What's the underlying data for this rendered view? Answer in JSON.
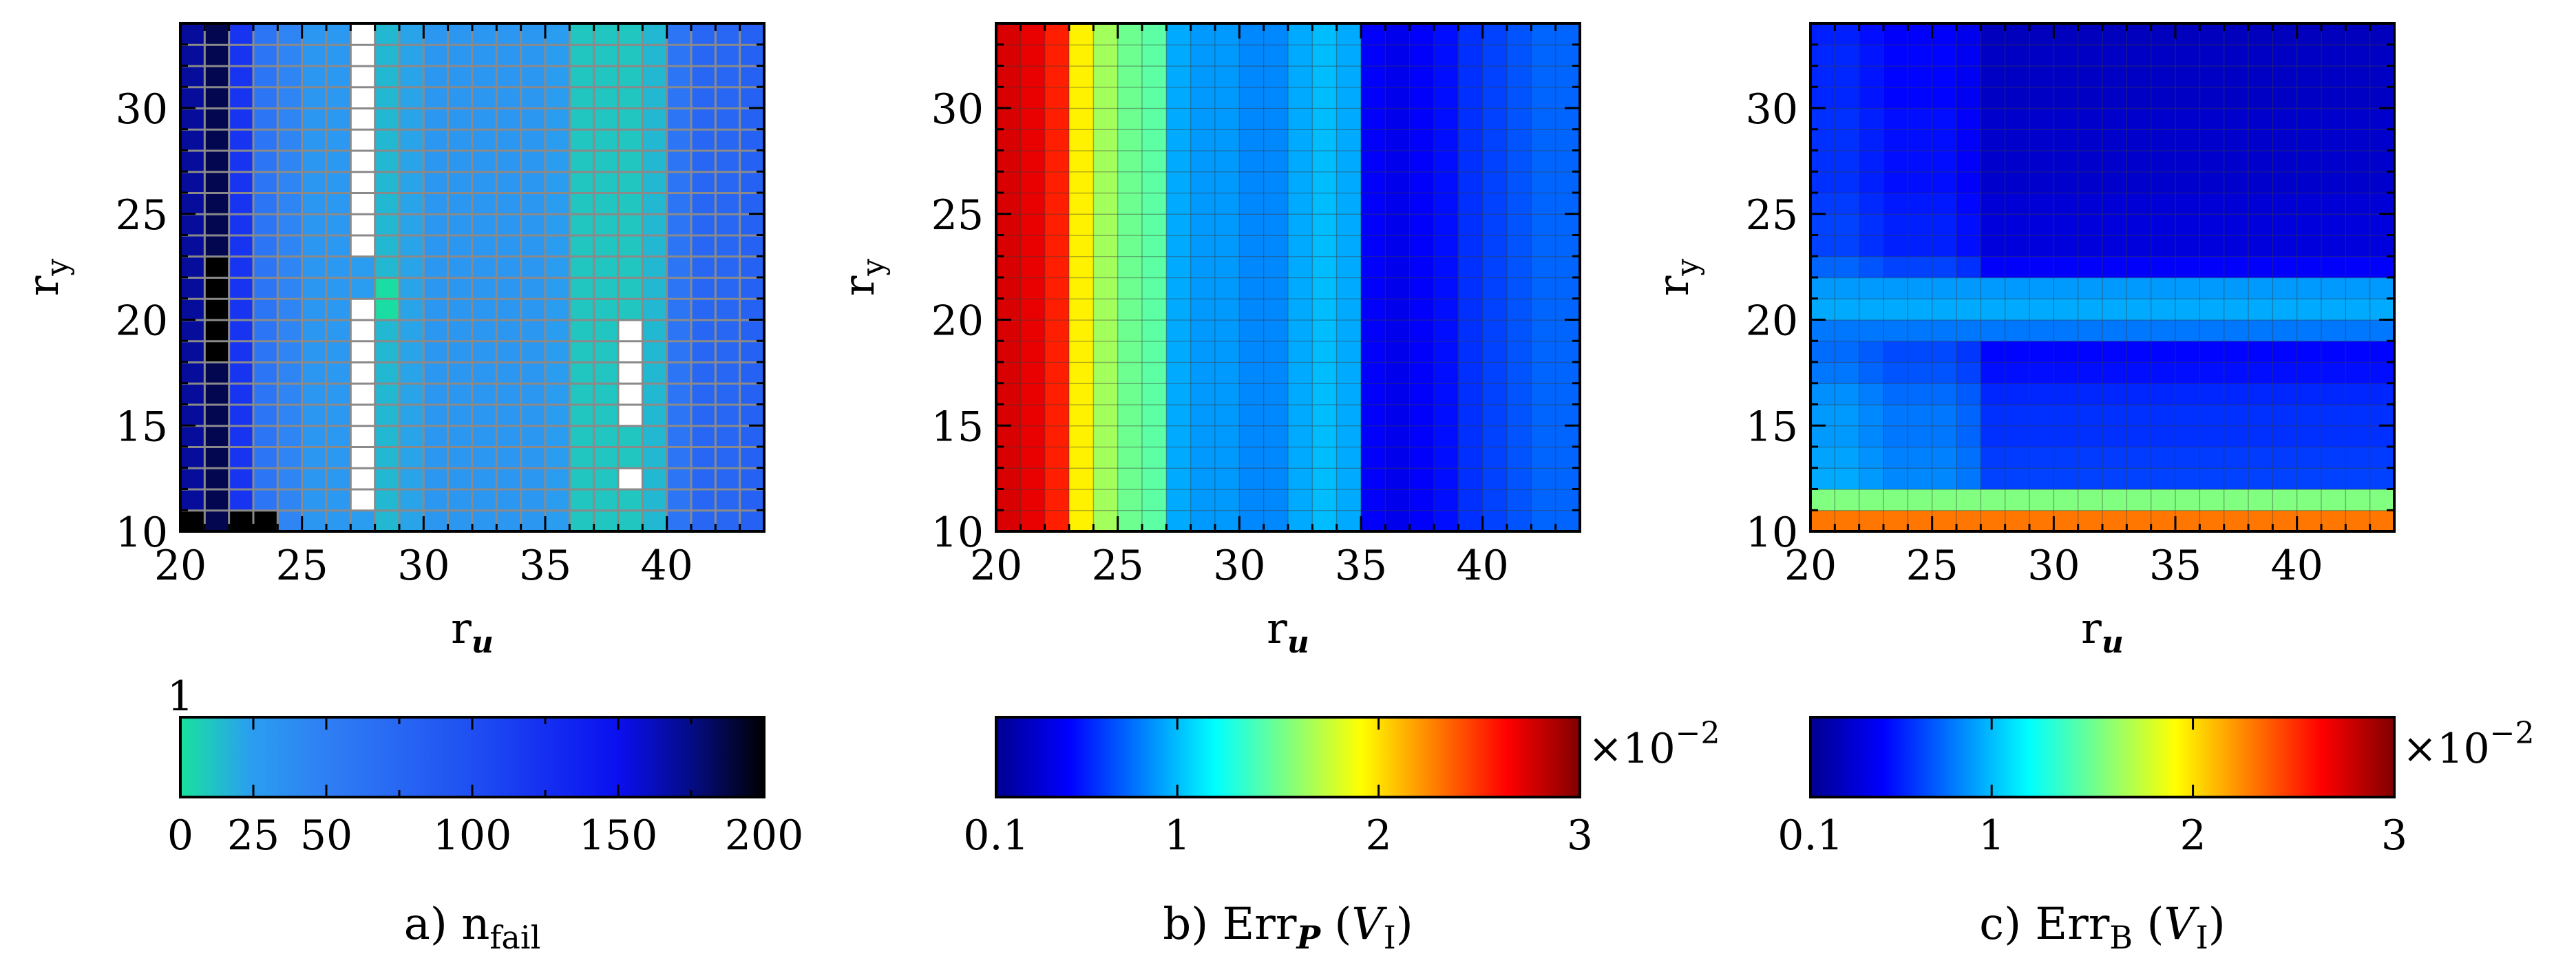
{
  "chart_data": [
    {
      "type": "heatmap",
      "panel": "a",
      "xlabel": "r",
      "xlabel_sub": "u",
      "ylabel": "r",
      "ylabel_sub": "y",
      "x_range": [
        20,
        44
      ],
      "y_range": [
        10,
        34
      ],
      "x_ticks": [
        "20",
        "25",
        "30",
        "35",
        "40"
      ],
      "y_ticks": [
        "10",
        "15",
        "20",
        "25",
        "30"
      ],
      "grid": true,
      "colormap": "nfail",
      "colorbar": {
        "min": 0,
        "max": 200,
        "ticks": [
          "0",
          "25",
          "50",
          "100",
          "150",
          "200"
        ],
        "tick_values": [
          0,
          25,
          50,
          100,
          150,
          200
        ],
        "top_label": "1",
        "multiplier": "",
        "caption_prefix": "a) n",
        "caption_sub": "fail"
      },
      "column_values": [
        [
          20,
          170
        ],
        [
          21,
          185
        ],
        [
          22,
          120
        ],
        [
          23,
          60
        ],
        [
          24,
          45
        ],
        [
          25,
          30
        ],
        [
          26,
          28
        ],
        [
          27,
          25
        ],
        [
          28,
          15
        ],
        [
          29,
          22
        ],
        [
          30,
          30
        ],
        [
          31,
          30
        ],
        [
          32,
          30
        ],
        [
          33,
          30
        ],
        [
          34,
          30
        ],
        [
          35,
          25
        ],
        [
          36,
          10
        ],
        [
          37,
          10
        ],
        [
          38,
          10
        ],
        [
          39,
          15
        ],
        [
          40,
          60
        ],
        [
          41,
          75
        ],
        [
          42,
          75
        ],
        [
          43,
          80
        ]
      ],
      "cell_overrides": [
        [
          21,
          18,
          200
        ],
        [
          21,
          19,
          200
        ],
        [
          21,
          20,
          200
        ],
        [
          21,
          21,
          200
        ],
        [
          21,
          22,
          200
        ],
        [
          22,
          10,
          200
        ],
        [
          23,
          10,
          200
        ],
        [
          20,
          10,
          200
        ],
        [
          27,
          11,
          null
        ],
        [
          27,
          12,
          null
        ],
        [
          27,
          13,
          null
        ],
        [
          27,
          14,
          null
        ],
        [
          27,
          15,
          null
        ],
        [
          27,
          16,
          null
        ],
        [
          27,
          17,
          null
        ],
        [
          27,
          18,
          null
        ],
        [
          27,
          19,
          null
        ],
        [
          27,
          20,
          null
        ],
        [
          27,
          23,
          null
        ],
        [
          27,
          24,
          null
        ],
        [
          27,
          25,
          null
        ],
        [
          27,
          26,
          null
        ],
        [
          27,
          27,
          null
        ],
        [
          27,
          28,
          null
        ],
        [
          27,
          29,
          null
        ],
        [
          27,
          30,
          null
        ],
        [
          27,
          31,
          null
        ],
        [
          27,
          32,
          null
        ],
        [
          27,
          33,
          null
        ],
        [
          28,
          20,
          2
        ],
        [
          28,
          21,
          2
        ],
        [
          38,
          12,
          null
        ],
        [
          38,
          15,
          null
        ],
        [
          38,
          16,
          null
        ],
        [
          38,
          17,
          null
        ],
        [
          38,
          18,
          null
        ],
        [
          38,
          19,
          null
        ],
        [
          42,
          21,
          75
        ]
      ]
    },
    {
      "type": "heatmap",
      "panel": "b",
      "xlabel": "r",
      "xlabel_sub": "u",
      "ylabel": "r",
      "ylabel_sub": "y",
      "x_range": [
        20,
        44
      ],
      "y_range": [
        10,
        34
      ],
      "x_ticks": [
        "20",
        "25",
        "30",
        "35",
        "40"
      ],
      "y_ticks": [
        "10",
        "15",
        "20",
        "25",
        "30"
      ],
      "grid": true,
      "colormap": "jet",
      "colorbar": {
        "min": 0.1,
        "max": 3,
        "ticks": [
          "0.1",
          "1",
          "2",
          "3"
        ],
        "tick_values": [
          0.1,
          1,
          2,
          3
        ],
        "multiplier": "×10",
        "multiplier_exp": "−2",
        "caption_prefix": "b) Err",
        "caption_sub": "P",
        "caption_suffix": " (",
        "caption_set": "V",
        "caption_set_sub": "I",
        "caption_end": ")"
      },
      "column_values": [
        [
          20,
          2.75
        ],
        [
          21,
          2.7
        ],
        [
          22,
          2.55
        ],
        [
          23,
          1.95
        ],
        [
          24,
          1.65
        ],
        [
          25,
          1.5
        ],
        [
          26,
          1.45
        ],
        [
          27,
          0.95
        ],
        [
          28,
          0.9
        ],
        [
          29,
          0.9
        ],
        [
          30,
          0.85
        ],
        [
          31,
          0.85
        ],
        [
          32,
          0.95
        ],
        [
          33,
          1.0
        ],
        [
          34,
          0.95
        ],
        [
          35,
          0.45
        ],
        [
          36,
          0.4
        ],
        [
          37,
          0.45
        ],
        [
          38,
          0.5
        ],
        [
          39,
          0.6
        ],
        [
          40,
          0.65
        ],
        [
          41,
          0.7
        ],
        [
          42,
          0.75
        ],
        [
          43,
          0.75
        ]
      ],
      "cell_overrides": []
    },
    {
      "type": "heatmap",
      "panel": "c",
      "xlabel": "r",
      "xlabel_sub": "u",
      "ylabel": "r",
      "ylabel_sub": "y",
      "x_range": [
        20,
        44
      ],
      "y_range": [
        10,
        34
      ],
      "x_ticks": [
        "20",
        "25",
        "30",
        "35",
        "40"
      ],
      "y_ticks": [
        "10",
        "15",
        "20",
        "25",
        "30"
      ],
      "grid": true,
      "colormap": "jet",
      "colorbar": {
        "min": 0.1,
        "max": 3,
        "ticks": [
          "0.1",
          "1",
          "2",
          "3"
        ],
        "tick_values": [
          0.1,
          1,
          2,
          3
        ],
        "multiplier": "×10",
        "multiplier_exp": "−2",
        "caption_prefix": "c) Err",
        "caption_sub": "B",
        "caption_suffix": " (",
        "caption_set": "V",
        "caption_set_sub": "I",
        "caption_end": ")"
      },
      "row_values": [
        [
          10,
          2.3
        ],
        [
          11,
          1.55
        ],
        [
          12,
          0.8
        ],
        [
          13,
          0.78
        ],
        [
          14,
          0.75
        ],
        [
          15,
          0.75
        ],
        [
          16,
          0.72
        ],
        [
          17,
          0.65
        ],
        [
          18,
          0.62
        ],
        [
          19,
          0.8
        ],
        [
          20,
          0.95
        ],
        [
          21,
          0.9
        ],
        [
          22,
          0.6
        ],
        [
          23,
          0.5
        ],
        [
          24,
          0.5
        ],
        [
          25,
          0.48
        ],
        [
          26,
          0.45
        ],
        [
          27,
          0.45
        ],
        [
          28,
          0.45
        ],
        [
          29,
          0.45
        ],
        [
          30,
          0.42
        ],
        [
          31,
          0.42
        ],
        [
          32,
          0.42
        ],
        [
          33,
          0.4
        ]
      ],
      "column_adjust": [
        [
          20,
          0.15
        ],
        [
          21,
          0.15
        ],
        [
          22,
          0.1
        ],
        [
          23,
          0.05
        ],
        [
          24,
          0.05
        ],
        [
          25,
          0.05
        ],
        [
          26,
          0.0
        ],
        [
          27,
          -0.15
        ],
        [
          28,
          -0.15
        ],
        [
          29,
          -0.15
        ],
        [
          30,
          -0.15
        ],
        [
          31,
          -0.15
        ],
        [
          32,
          -0.15
        ],
        [
          33,
          -0.15
        ],
        [
          34,
          -0.15
        ],
        [
          35,
          -0.15
        ],
        [
          36,
          -0.15
        ],
        [
          37,
          -0.15
        ],
        [
          38,
          -0.15
        ],
        [
          39,
          -0.15
        ],
        [
          40,
          -0.15
        ],
        [
          41,
          -0.15
        ],
        [
          42,
          -0.15
        ],
        [
          43,
          -0.15
        ]
      ],
      "cell_overrides": []
    }
  ]
}
